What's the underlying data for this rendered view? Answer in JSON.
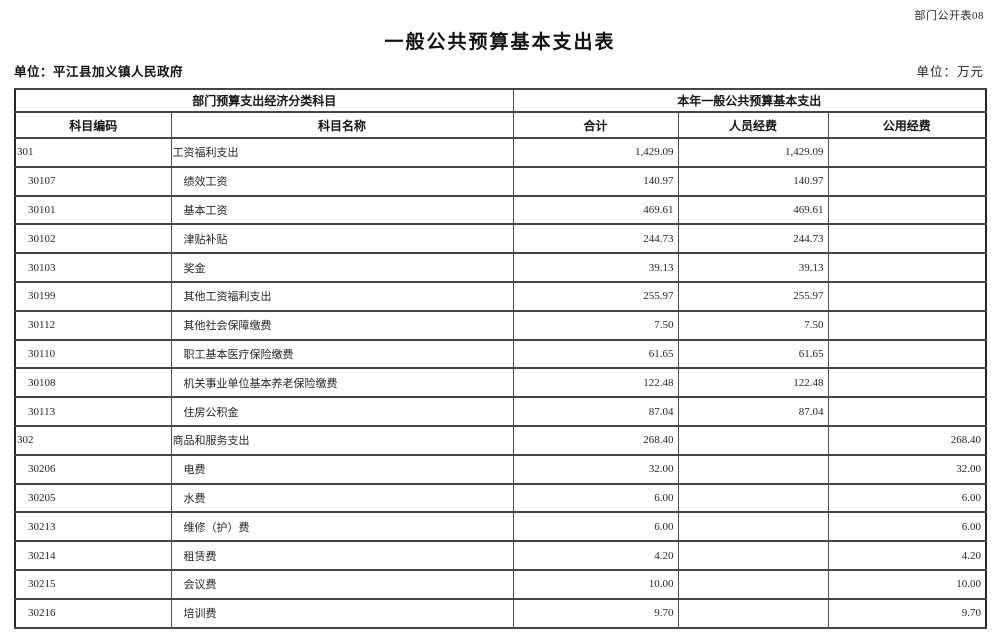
{
  "page": {
    "corner_label": "部门公开表08",
    "title": "一般公共预算基本支出表",
    "unit_left": "单位：平江县加义镇人民政府",
    "unit_right": "单位：万元"
  },
  "table": {
    "group_headers": [
      "部门预算支出经济分类科目",
      "本年一般公共预算基本支出"
    ],
    "columns": [
      "科目编码",
      "科目名称",
      "合计",
      "人员经费",
      "公用经费"
    ],
    "rows": [
      {
        "code": "301",
        "name": "工资福利支出",
        "total": "1,429.09",
        "personnel": "1,429.09",
        "public": "",
        "level": 1
      },
      {
        "code": "30107",
        "name": "绩效工资",
        "total": "140.97",
        "personnel": "140.97",
        "public": "",
        "level": 2
      },
      {
        "code": "30101",
        "name": "基本工资",
        "total": "469.61",
        "personnel": "469.61",
        "public": "",
        "level": 2
      },
      {
        "code": "30102",
        "name": "津贴补贴",
        "total": "244.73",
        "personnel": "244.73",
        "public": "",
        "level": 2
      },
      {
        "code": "30103",
        "name": "奖金",
        "total": "39.13",
        "personnel": "39.13",
        "public": "",
        "level": 2
      },
      {
        "code": "30199",
        "name": "其他工资福利支出",
        "total": "255.97",
        "personnel": "255.97",
        "public": "",
        "level": 2
      },
      {
        "code": "30112",
        "name": "其他社会保障缴费",
        "total": "7.50",
        "personnel": "7.50",
        "public": "",
        "level": 2
      },
      {
        "code": "30110",
        "name": "职工基本医疗保险缴费",
        "total": "61.65",
        "personnel": "61.65",
        "public": "",
        "level": 2
      },
      {
        "code": "30108",
        "name": "机关事业单位基本养老保险缴费",
        "total": "122.48",
        "personnel": "122.48",
        "public": "",
        "level": 2
      },
      {
        "code": "30113",
        "name": "住房公积金",
        "total": "87.04",
        "personnel": "87.04",
        "public": "",
        "level": 2
      },
      {
        "code": "302",
        "name": "商品和服务支出",
        "total": "268.40",
        "personnel": "",
        "public": "268.40",
        "level": 1
      },
      {
        "code": "30206",
        "name": "电费",
        "total": "32.00",
        "personnel": "",
        "public": "32.00",
        "level": 2
      },
      {
        "code": "30205",
        "name": "水费",
        "total": "6.00",
        "personnel": "",
        "public": "6.00",
        "level": 2
      },
      {
        "code": "30213",
        "name": "维修（护）费",
        "total": "6.00",
        "personnel": "",
        "public": "6.00",
        "level": 2
      },
      {
        "code": "30214",
        "name": "租赁费",
        "total": "4.20",
        "personnel": "",
        "public": "4.20",
        "level": 2
      },
      {
        "code": "30215",
        "name": "会议费",
        "total": "10.00",
        "personnel": "",
        "public": "10.00",
        "level": 2
      },
      {
        "code": "30216",
        "name": "培训费",
        "total": "9.70",
        "personnel": "",
        "public": "9.70",
        "level": 2
      }
    ]
  }
}
